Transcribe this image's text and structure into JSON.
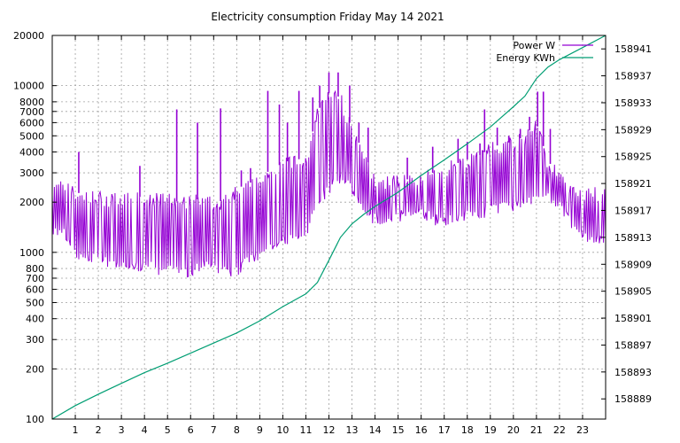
{
  "chart_data": {
    "type": "line",
    "title": "Electricity consumption Friday May 14 2021",
    "xlabel": "",
    "ylabel": "",
    "y2label": "",
    "x_ticks": [
      "1",
      "2",
      "3",
      "4",
      "5",
      "6",
      "7",
      "8",
      "9",
      "10",
      "11",
      "12",
      "13",
      "14",
      "15",
      "16",
      "17",
      "18",
      "19",
      "20",
      "21",
      "22",
      "23"
    ],
    "xlim": [
      0,
      24
    ],
    "y_scale": "log",
    "ylim": [
      100,
      20000
    ],
    "y_ticks": [
      100,
      200,
      300,
      400,
      500,
      600,
      700,
      800,
      1000,
      2000,
      3000,
      4000,
      5000,
      6000,
      7000,
      8000,
      10000,
      20000
    ],
    "y2lim": [
      158886,
      158943
    ],
    "y2_ticks": [
      158889,
      158893,
      158897,
      158901,
      158905,
      158909,
      158913,
      158917,
      158921,
      158925,
      158929,
      158933,
      158937,
      158941
    ],
    "grid": true,
    "legend_position": "top-right",
    "series": [
      {
        "name": "Power W",
        "axis": "left",
        "color": "#9400d3",
        "envelope": {
          "x": [
            0,
            0.5,
            1,
            1.5,
            2,
            2.5,
            3,
            3.5,
            4,
            4.5,
            5,
            5.5,
            6,
            6.5,
            7,
            7.5,
            8,
            8.5,
            9,
            9.5,
            10,
            10.5,
            11,
            11.5,
            12,
            12.5,
            13,
            13.5,
            14,
            14.5,
            15,
            15.5,
            16,
            16.5,
            17,
            17.5,
            18,
            18.5,
            19,
            19.5,
            20,
            20.5,
            21,
            21.5,
            22,
            22.5,
            23,
            23.5,
            24
          ],
          "low": [
            1350,
            1300,
            950,
            950,
            900,
            850,
            800,
            820,
            850,
            800,
            780,
            760,
            780,
            850,
            780,
            760,
            780,
            900,
            950,
            1100,
            1150,
            1200,
            1250,
            2000,
            2400,
            2800,
            2400,
            1700,
            1600,
            1600,
            1650,
            1700,
            1750,
            1600,
            1500,
            1600,
            1700,
            1700,
            1800,
            1900,
            1900,
            2000,
            2200,
            2100,
            1900,
            1500,
            1250,
            1200,
            1250
          ],
          "high": [
            2500,
            2500,
            2300,
            2200,
            2200,
            2100,
            2100,
            2150,
            2150,
            2100,
            2100,
            2000,
            2050,
            2100,
            2000,
            2050,
            2400,
            2600,
            2700,
            3200,
            3400,
            3700,
            3500,
            7000,
            9000,
            8500,
            5500,
            4000,
            2800,
            2700,
            2700,
            2750,
            2800,
            3000,
            3200,
            3400,
            3600,
            3800,
            4200,
            4500,
            4600,
            5000,
            6000,
            3500,
            3000,
            2500,
            2300,
            2300,
            2300
          ]
        },
        "spikes": [
          {
            "x": 1.15,
            "y": 4000
          },
          {
            "x": 3.8,
            "y": 3300
          },
          {
            "x": 5.4,
            "y": 7200
          },
          {
            "x": 6.3,
            "y": 6000
          },
          {
            "x": 7.3,
            "y": 7300
          },
          {
            "x": 8.2,
            "y": 3100
          },
          {
            "x": 8.6,
            "y": 3200
          },
          {
            "x": 9.35,
            "y": 9300
          },
          {
            "x": 9.85,
            "y": 7700
          },
          {
            "x": 10.2,
            "y": 6000
          },
          {
            "x": 10.7,
            "y": 9300
          },
          {
            "x": 11.3,
            "y": 8500
          },
          {
            "x": 11.6,
            "y": 10000
          },
          {
            "x": 12.0,
            "y": 12000
          },
          {
            "x": 12.4,
            "y": 12000
          },
          {
            "x": 12.9,
            "y": 10000
          },
          {
            "x": 13.3,
            "y": 6000
          },
          {
            "x": 13.7,
            "y": 5600
          },
          {
            "x": 15.4,
            "y": 3700
          },
          {
            "x": 16.5,
            "y": 4300
          },
          {
            "x": 17.6,
            "y": 4800
          },
          {
            "x": 18.0,
            "y": 4600
          },
          {
            "x": 18.55,
            "y": 4500
          },
          {
            "x": 18.75,
            "y": 7200
          },
          {
            "x": 19.3,
            "y": 5600
          },
          {
            "x": 19.8,
            "y": 5000
          },
          {
            "x": 20.3,
            "y": 5500
          },
          {
            "x": 20.7,
            "y": 6500
          },
          {
            "x": 21.05,
            "y": 9200
          },
          {
            "x": 21.3,
            "y": 9200
          },
          {
            "x": 21.6,
            "y": 5500
          }
        ]
      },
      {
        "name": "Energy KWh",
        "axis": "right",
        "color": "#009e73",
        "x": [
          0,
          1,
          2,
          3,
          4,
          5,
          6,
          7,
          8,
          9,
          10,
          11,
          11.5,
          12,
          12.5,
          13,
          13.5,
          14,
          15,
          16,
          17,
          18,
          19,
          20,
          20.5,
          21,
          21.5,
          22,
          23,
          24
        ],
        "y": [
          158886,
          158888,
          158889.7,
          158891.3,
          158892.9,
          158894.3,
          158895.8,
          158897.3,
          158898.8,
          158900.6,
          158902.7,
          158904.6,
          158906.3,
          158909.6,
          158913.0,
          158915.0,
          158916.4,
          158917.6,
          158919.7,
          158922.2,
          158924.5,
          158926.9,
          158929.4,
          158932.4,
          158934.0,
          158936.6,
          158938.3,
          158939.4,
          158941.2,
          158943.0
        ]
      }
    ]
  }
}
